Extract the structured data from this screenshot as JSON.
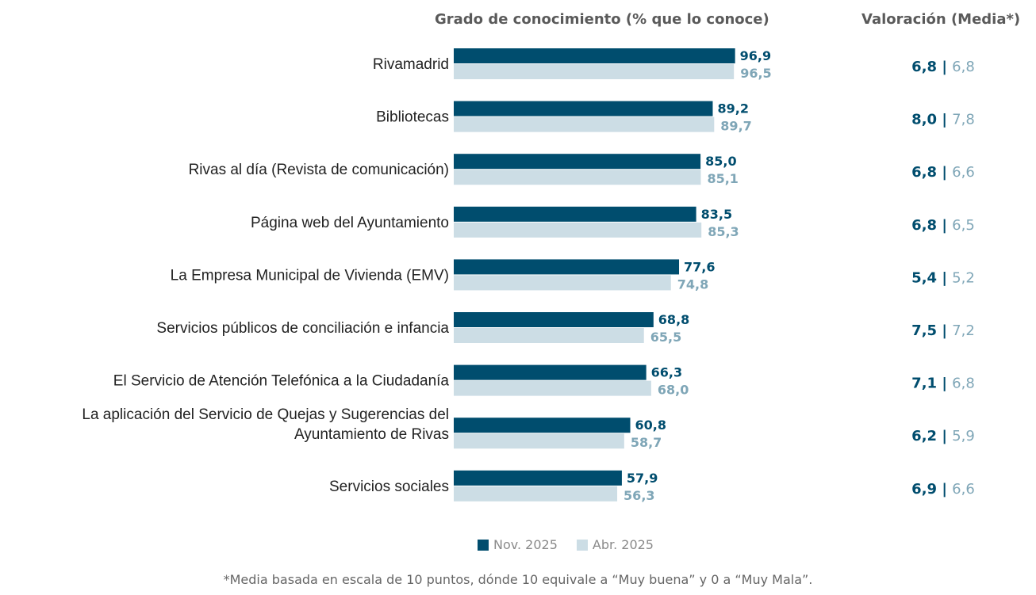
{
  "chart_data": {
    "type": "bar",
    "orientation": "horizontal",
    "title": "Grado de conocimiento (% que lo conoce)",
    "rating_title": "Valoración (Media*)",
    "categories": [
      "Rivamadrid",
      "Bibliotecas",
      "Rivas al día (Revista de comunicación)",
      "Página web del Ayuntamiento",
      "La Empresa Municipal de Vivienda (EMV)",
      "Servicios públicos de conciliación e infancia",
      "El Servicio de Atención Telefónica a la Ciudadanía",
      "La aplicación del Servicio de Quejas y Sugerencias del\nAyuntamiento de Rivas",
      "Servicios sociales"
    ],
    "series": [
      {
        "name": "Nov. 2025",
        "color": "#004d6e",
        "values": [
          96.9,
          89.2,
          85.0,
          83.5,
          77.6,
          68.8,
          66.3,
          60.8,
          57.9
        ],
        "ratings": [
          6.8,
          8.0,
          6.8,
          6.8,
          5.4,
          7.5,
          7.1,
          6.2,
          6.9
        ]
      },
      {
        "name": "Abr. 2025",
        "color": "#ccdde5",
        "label_color": "#7fa6b7",
        "values": [
          96.5,
          89.7,
          85.1,
          85.3,
          74.8,
          65.5,
          68.0,
          58.7,
          56.3
        ],
        "ratings": [
          6.8,
          7.8,
          6.6,
          6.5,
          5.2,
          7.2,
          6.8,
          5.9,
          6.6
        ]
      }
    ],
    "xlim": [
      0,
      100
    ],
    "grid": false,
    "legend": "bottom"
  },
  "footnote": "*Media basada en escala de 10 puntos, dónde 10 equivale a “Muy buena” y 0 a “Muy Mala”."
}
